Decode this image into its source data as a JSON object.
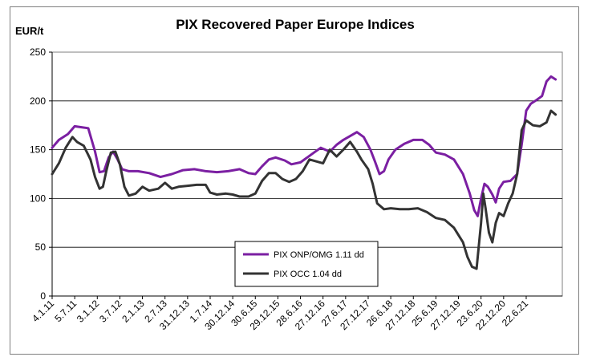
{
  "chart_data": {
    "type": "line",
    "title": "PIX Recovered Paper Europe Indices",
    "ylabel": "EUR/t",
    "xlabel": "",
    "ylim": [
      0,
      250
    ],
    "yticks": [
      0,
      50,
      100,
      150,
      200,
      250
    ],
    "grid": "horizontal",
    "legend_position": "bottom-center",
    "x_tick_labels": [
      "4.1.11",
      "5.7.11",
      "3.1.12",
      "3.7.12",
      "2.1.13",
      "2.7.13",
      "31.12.13",
      "1.7.14",
      "30.12.14",
      "30.6.15",
      "29.12.15",
      "28.6.16",
      "27.12.16",
      "27.6.17",
      "27.12.17",
      "26.6.18",
      "27.12.18",
      "25.6.19",
      "27.12.19",
      "23.6.20",
      "22.12.20",
      "22.6.21"
    ],
    "series": [
      {
        "name": "PIX ONP/OMG 1.11 dd",
        "color": "#7B1FA2",
        "x": [
          "4.1.11",
          "5.7.11",
          "3.1.12",
          "3.7.12",
          "2.1.13",
          "2.7.13",
          "31.12.13",
          "1.7.14",
          "30.12.14",
          "30.6.15",
          "29.12.15",
          "28.6.16",
          "27.12.16",
          "27.6.17",
          "27.12.17",
          "26.6.18",
          "27.12.18",
          "25.6.19",
          "27.12.19",
          "23.6.20",
          "22.12.20",
          "22.6.21"
        ],
        "values": [
          152,
          175,
          125,
          147,
          128,
          123,
          129,
          128,
          126,
          142,
          136,
          152,
          160,
          166,
          124,
          152,
          160,
          140,
          85,
          110,
          120,
          210
        ],
        "path": [
          [
            0,
            152
          ],
          [
            0.3,
            160
          ],
          [
            0.7,
            166
          ],
          [
            1.0,
            174
          ],
          [
            1.3,
            173
          ],
          [
            1.6,
            172
          ],
          [
            1.9,
            148
          ],
          [
            2.1,
            127
          ],
          [
            2.3,
            128
          ],
          [
            2.5,
            142
          ],
          [
            2.7,
            148
          ],
          [
            2.9,
            140
          ],
          [
            3.1,
            130
          ],
          [
            3.4,
            128
          ],
          [
            3.8,
            128
          ],
          [
            4.3,
            126
          ],
          [
            4.8,
            122
          ],
          [
            5.3,
            125
          ],
          [
            5.8,
            129
          ],
          [
            6.3,
            130
          ],
          [
            6.8,
            128
          ],
          [
            7.3,
            127
          ],
          [
            7.8,
            128
          ],
          [
            8.3,
            130
          ],
          [
            8.7,
            126
          ],
          [
            9.0,
            125
          ],
          [
            9.3,
            133
          ],
          [
            9.6,
            140
          ],
          [
            9.9,
            142
          ],
          [
            10.3,
            139
          ],
          [
            10.6,
            135
          ],
          [
            11.0,
            137
          ],
          [
            11.3,
            142
          ],
          [
            11.6,
            147
          ],
          [
            11.9,
            152
          ],
          [
            12.3,
            148
          ],
          [
            12.6,
            155
          ],
          [
            12.9,
            160
          ],
          [
            13.2,
            164
          ],
          [
            13.5,
            168
          ],
          [
            13.8,
            163
          ],
          [
            14.1,
            150
          ],
          [
            14.3,
            138
          ],
          [
            14.5,
            125
          ],
          [
            14.7,
            128
          ],
          [
            14.9,
            140
          ],
          [
            15.2,
            150
          ],
          [
            15.6,
            156
          ],
          [
            16.0,
            160
          ],
          [
            16.4,
            160
          ],
          [
            16.7,
            155
          ],
          [
            17.0,
            147
          ],
          [
            17.4,
            145
          ],
          [
            17.8,
            140
          ],
          [
            18.2,
            125
          ],
          [
            18.5,
            105
          ],
          [
            18.7,
            88
          ],
          [
            18.85,
            82
          ],
          [
            19.0,
            100
          ],
          [
            19.15,
            115
          ],
          [
            19.3,
            112
          ],
          [
            19.5,
            104
          ],
          [
            19.65,
            96
          ],
          [
            19.8,
            110
          ],
          [
            20.0,
            117
          ],
          [
            20.3,
            118
          ],
          [
            20.6,
            125
          ],
          [
            20.8,
            155
          ],
          [
            21.0,
            190
          ],
          [
            21.2,
            197
          ],
          [
            21.4,
            200
          ],
          [
            21.7,
            205
          ],
          [
            21.9,
            220
          ],
          [
            22.1,
            225
          ],
          [
            22.3,
            222
          ]
        ]
      },
      {
        "name": "PIX OCC 1.04 dd",
        "color": "#333333",
        "x": [
          "4.1.11",
          "5.7.11",
          "3.1.12",
          "3.7.12",
          "2.1.13",
          "2.7.13",
          "31.12.13",
          "1.7.14",
          "30.12.14",
          "30.6.15",
          "29.12.15",
          "28.6.16",
          "27.12.16",
          "27.6.17",
          "27.12.17",
          "26.6.18",
          "27.12.18",
          "25.6.19",
          "27.12.19",
          "23.6.20",
          "22.12.20",
          "22.6.21"
        ],
        "values": [
          125,
          163,
          110,
          147,
          105,
          115,
          113,
          106,
          102,
          125,
          118,
          140,
          150,
          155,
          92,
          89,
          88,
          75,
          35,
          60,
          105,
          188
        ],
        "path": [
          [
            0,
            125
          ],
          [
            0.3,
            136
          ],
          [
            0.6,
            152
          ],
          [
            0.9,
            163
          ],
          [
            1.1,
            158
          ],
          [
            1.4,
            154
          ],
          [
            1.7,
            140
          ],
          [
            1.9,
            122
          ],
          [
            2.1,
            110
          ],
          [
            2.25,
            112
          ],
          [
            2.4,
            128
          ],
          [
            2.6,
            147
          ],
          [
            2.8,
            148
          ],
          [
            3.0,
            135
          ],
          [
            3.2,
            112
          ],
          [
            3.4,
            103
          ],
          [
            3.7,
            105
          ],
          [
            4.0,
            112
          ],
          [
            4.3,
            108
          ],
          [
            4.7,
            110
          ],
          [
            5.0,
            116
          ],
          [
            5.3,
            110
          ],
          [
            5.6,
            112
          ],
          [
            6.0,
            113
          ],
          [
            6.4,
            114
          ],
          [
            6.8,
            114
          ],
          [
            7.0,
            106
          ],
          [
            7.3,
            104
          ],
          [
            7.7,
            105
          ],
          [
            8.0,
            104
          ],
          [
            8.3,
            102
          ],
          [
            8.7,
            102
          ],
          [
            9.0,
            105
          ],
          [
            9.3,
            118
          ],
          [
            9.6,
            126
          ],
          [
            9.9,
            126
          ],
          [
            10.2,
            120
          ],
          [
            10.5,
            117
          ],
          [
            10.8,
            120
          ],
          [
            11.1,
            128
          ],
          [
            11.4,
            140
          ],
          [
            11.7,
            138
          ],
          [
            12.0,
            136
          ],
          [
            12.3,
            150
          ],
          [
            12.6,
            143
          ],
          [
            12.9,
            150
          ],
          [
            13.2,
            158
          ],
          [
            13.5,
            148
          ],
          [
            13.7,
            140
          ],
          [
            14.0,
            130
          ],
          [
            14.2,
            115
          ],
          [
            14.4,
            95
          ],
          [
            14.7,
            89
          ],
          [
            15.0,
            90
          ],
          [
            15.4,
            89
          ],
          [
            15.8,
            89
          ],
          [
            16.2,
            90
          ],
          [
            16.6,
            86
          ],
          [
            17.0,
            80
          ],
          [
            17.4,
            78
          ],
          [
            17.8,
            70
          ],
          [
            18.2,
            55
          ],
          [
            18.4,
            40
          ],
          [
            18.6,
            30
          ],
          [
            18.8,
            28
          ],
          [
            19.0,
            75
          ],
          [
            19.1,
            105
          ],
          [
            19.2,
            90
          ],
          [
            19.35,
            65
          ],
          [
            19.5,
            55
          ],
          [
            19.65,
            75
          ],
          [
            19.8,
            85
          ],
          [
            20.0,
            82
          ],
          [
            20.2,
            95
          ],
          [
            20.4,
            105
          ],
          [
            20.6,
            125
          ],
          [
            20.8,
            170
          ],
          [
            21.0,
            180
          ],
          [
            21.3,
            175
          ],
          [
            21.6,
            174
          ],
          [
            21.9,
            178
          ],
          [
            22.1,
            190
          ],
          [
            22.3,
            186
          ]
        ]
      }
    ]
  }
}
